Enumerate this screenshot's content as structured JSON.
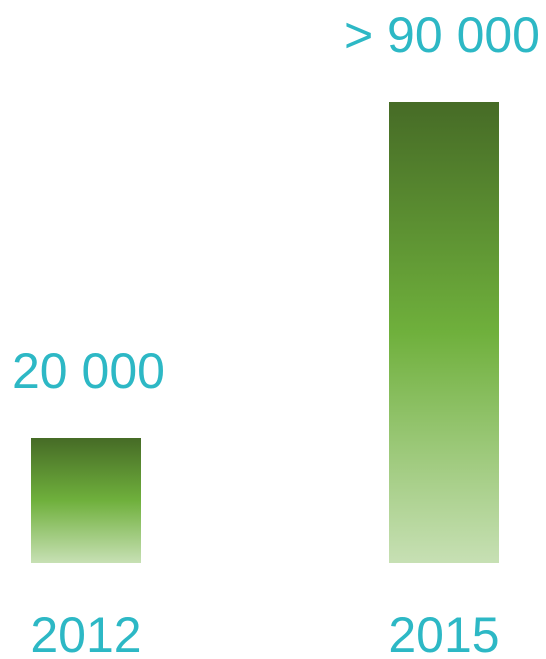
{
  "chart_data": {
    "type": "bar",
    "categories": [
      "2012",
      "2015"
    ],
    "values": [
      20000,
      90000
    ],
    "data_labels": [
      "20 000",
      "> 90 000"
    ],
    "title": "",
    "xlabel": "",
    "ylabel": "",
    "ylim": [
      0,
      90000
    ],
    "grid": false,
    "legend": "none",
    "colors": {
      "bar_top": "#466b26",
      "bar_mid": "#6fb03c",
      "bar_bottom": "#c7e0b4",
      "label": "#2db8c5"
    }
  }
}
